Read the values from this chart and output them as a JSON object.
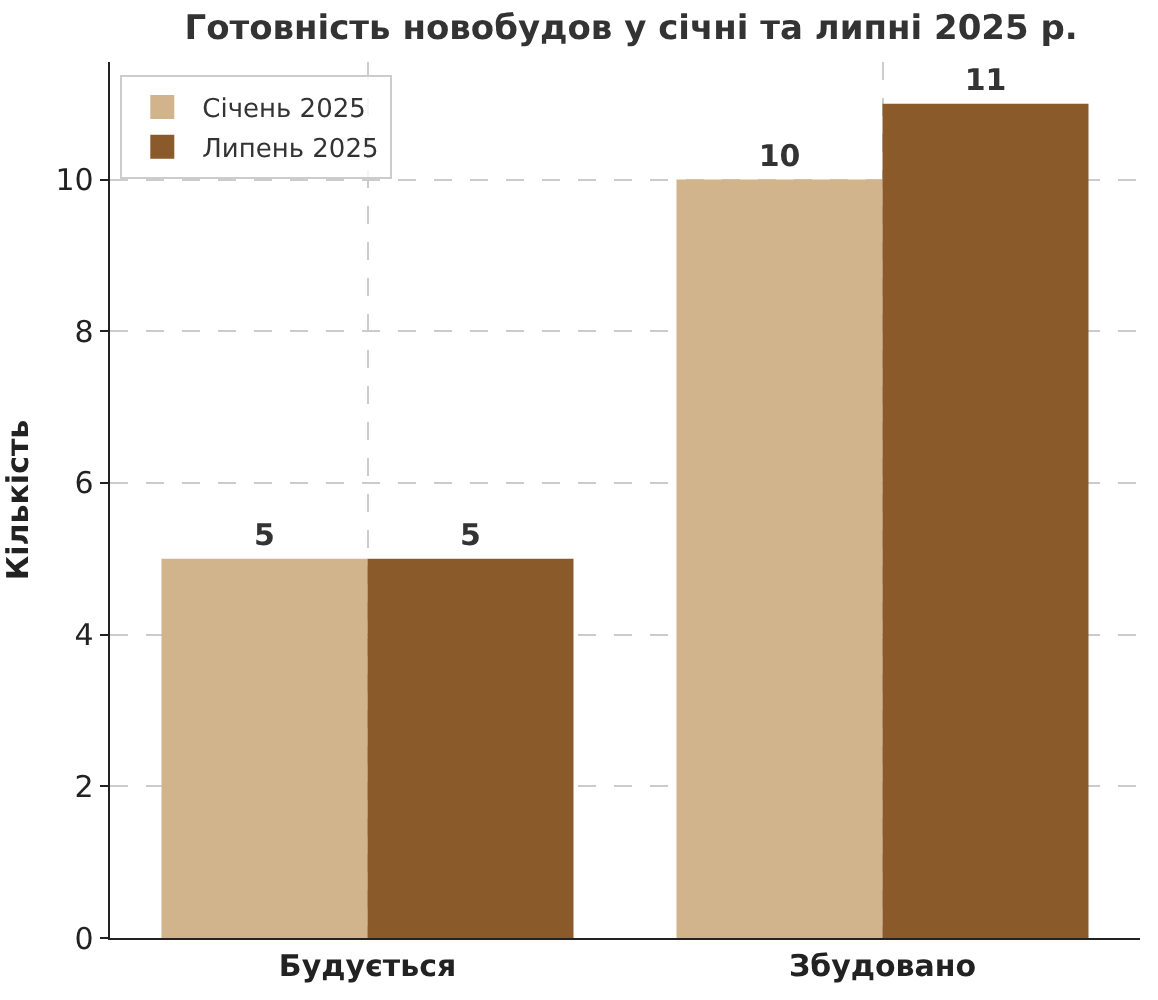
{
  "chart_data": {
    "type": "bar",
    "title": "Готовність новобудов у січні та липні 2025 р.",
    "ylabel": "Кількість",
    "categories": [
      "Будується",
      "Збудовано"
    ],
    "series": [
      {
        "name": "Січень 2025",
        "color": "#d2b48c",
        "values": [
          5,
          10
        ]
      },
      {
        "name": "Липень 2025",
        "color": "#8b5a2b",
        "values": [
          5,
          11
        ]
      }
    ],
    "ylim": [
      0,
      11.55
    ],
    "yticks": [
      0,
      2,
      4,
      6,
      8,
      10
    ],
    "grid": true,
    "legend": "top left",
    "data_labels": true
  }
}
